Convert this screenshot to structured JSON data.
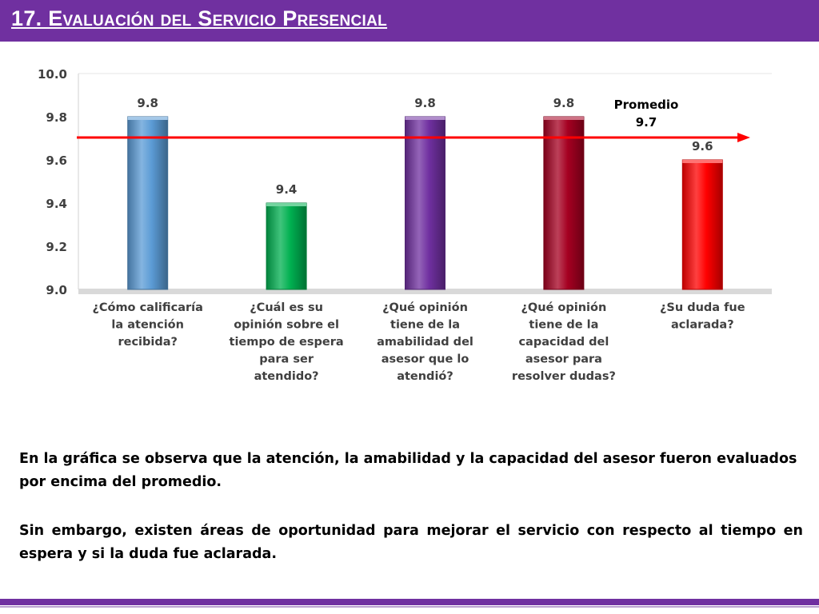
{
  "slide": {
    "title": "17. Evaluación del Servicio Presencial",
    "paragraph_1": "En la gráfica se observa que la atención, la amabilidad y la capacidad del asesor fueron evaluados por encima del promedio.",
    "paragraph_2": "Sin embargo, existen áreas de oportunidad para mejorar el servicio con respecto al tiempo en espera y si la duda fue aclarada."
  },
  "colors": {
    "header": "#7030a0",
    "average_line": "#ff0000"
  },
  "chart_data": {
    "type": "bar",
    "categories": [
      "¿Cómo calificaría la atención recibida?",
      "¿Cuál es su opinión sobre el tiempo de espera para ser atendido?",
      "¿Qué opinión tiene de la amabilidad del asesor que lo atendió?",
      "¿Qué opinión tiene de la capacidad del asesor para resolver dudas?",
      "¿Su duda fue aclarada?"
    ],
    "category_lines": [
      [
        "¿Cómo calificaría",
        "la atención",
        "recibida?"
      ],
      [
        "¿Cuál es su",
        "opinión sobre el",
        "tiempo de espera",
        "para ser",
        "atendido?"
      ],
      [
        "¿Qué opinión",
        "tiene de la",
        "amabilidad del",
        "asesor que lo",
        "atendió?"
      ],
      [
        "¿Qué opinión",
        "tiene de la",
        "capacidad del",
        "asesor para",
        "resolver dudas?"
      ],
      [
        "¿Su duda fue",
        "aclarada?"
      ]
    ],
    "values": [
      9.8,
      9.4,
      9.8,
      9.8,
      9.6
    ],
    "value_labels": [
      "9.8",
      "9.4",
      "9.8",
      "9.8",
      "9.6"
    ],
    "bar_colors": [
      "#5b9bd5",
      "#00b050",
      "#7030a0",
      "#a50021",
      "#ff0000"
    ],
    "ylim": [
      9.0,
      10.0
    ],
    "yticks": [
      9.0,
      9.2,
      9.4,
      9.6,
      9.8,
      10.0
    ],
    "ytick_labels": [
      "9.0",
      "9.2",
      "9.4",
      "9.6",
      "9.8",
      "10.0"
    ],
    "grid": false,
    "average": {
      "value": 9.7,
      "label": "Promedio",
      "value_label": "9.7"
    }
  }
}
